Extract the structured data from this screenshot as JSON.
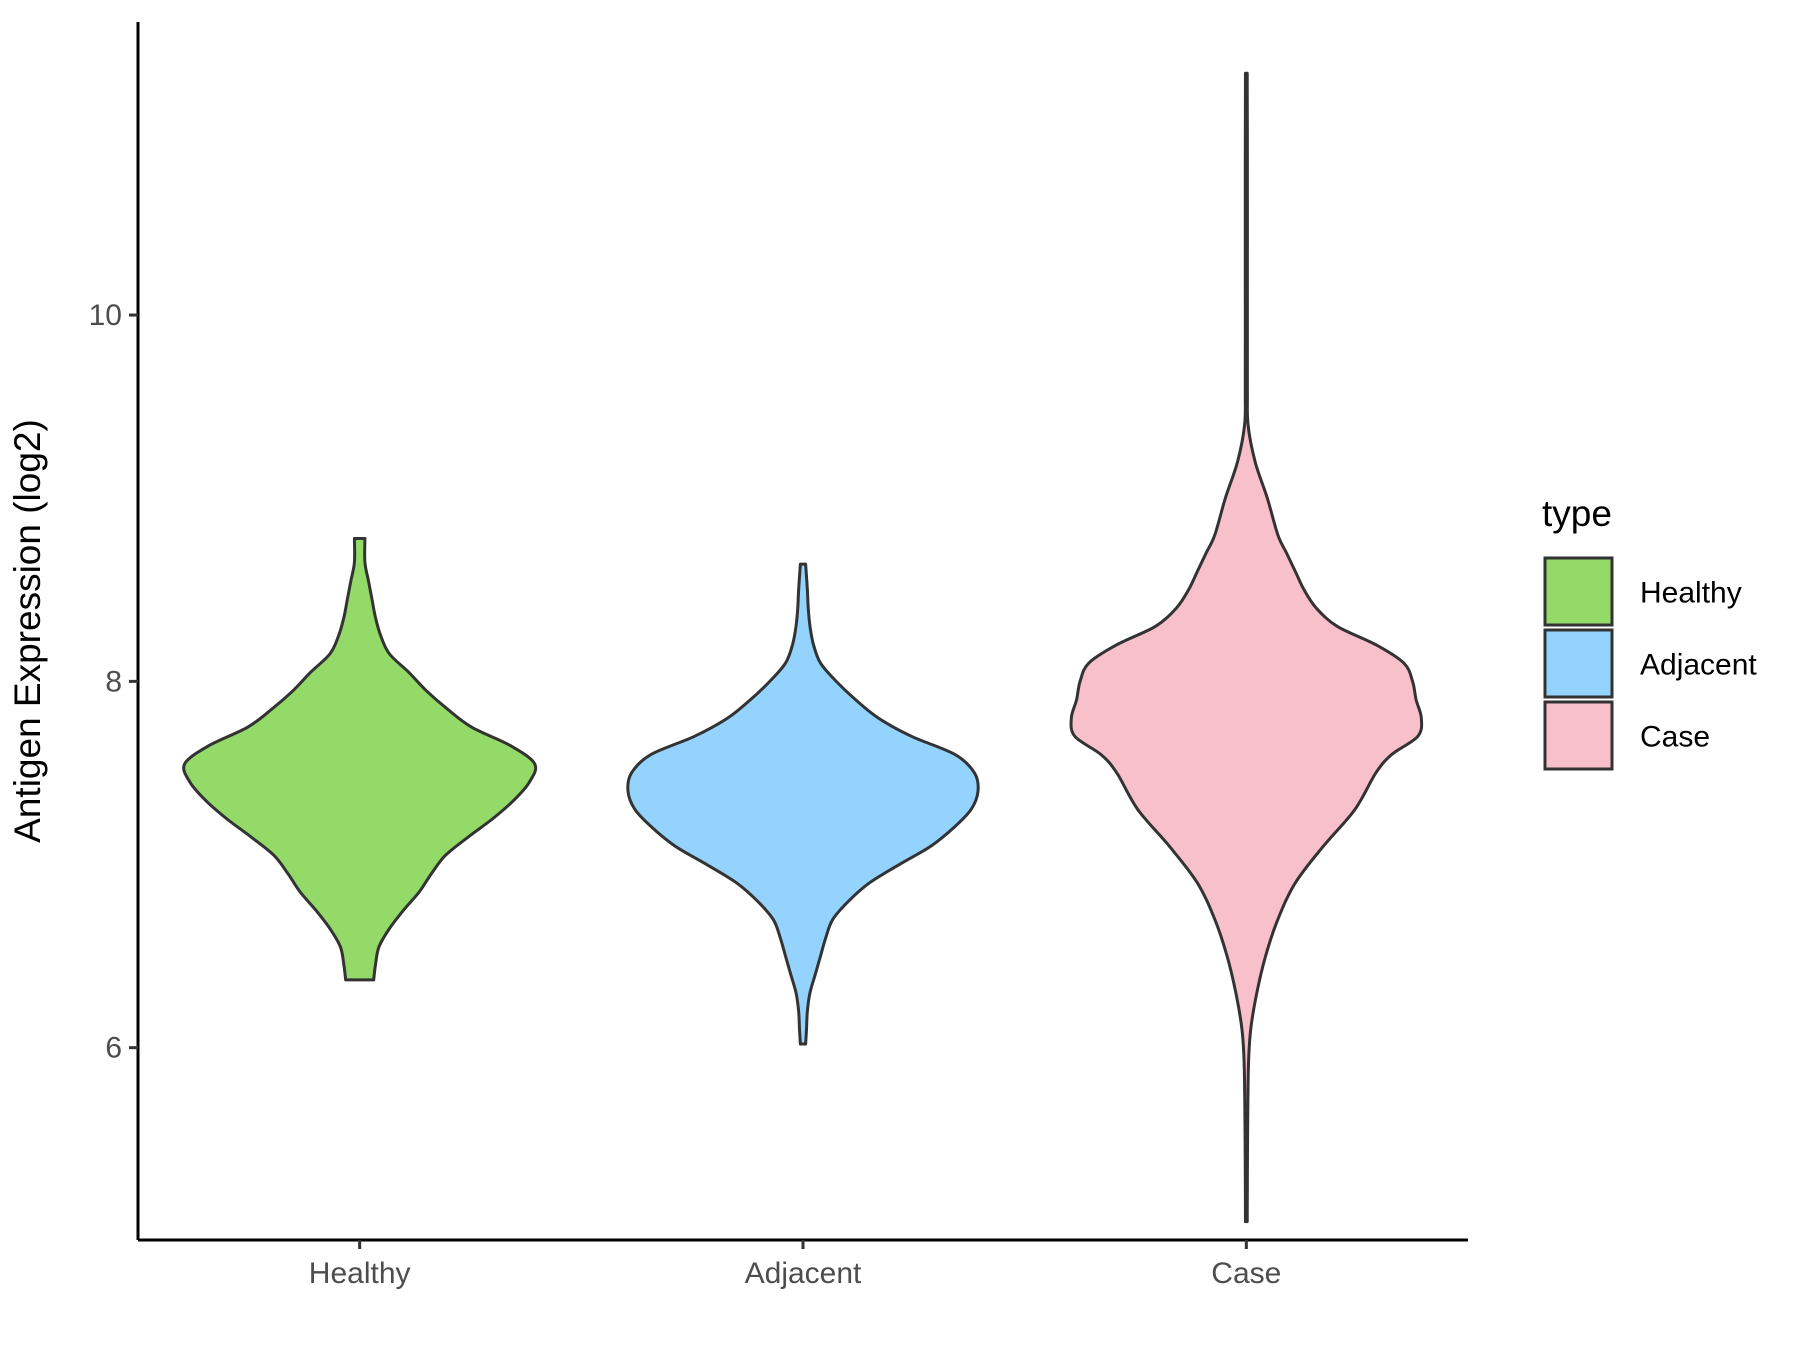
{
  "chart_data": {
    "type": "violin",
    "title": "",
    "xlabel": "",
    "ylabel": "Antigen Expression (log2)",
    "categories": [
      "Healthy",
      "Adjacent",
      "Case"
    ],
    "ylim": [
      4.95,
      11.6
    ],
    "yticks": [
      6,
      8,
      10
    ],
    "grid": false,
    "legend": {
      "title": "type",
      "position": "right",
      "entries": [
        {
          "label": "Healthy",
          "color": "#93da69"
        },
        {
          "label": "Adjacent",
          "color": "#93d3fd"
        },
        {
          "label": "Case",
          "color": "#f8c0cb"
        }
      ]
    },
    "outline_color": "#333333",
    "series": [
      {
        "name": "Healthy",
        "color": "#93da69",
        "min": 6.37,
        "max": 8.78,
        "profile": [
          [
            6.37,
            0.08
          ],
          [
            6.45,
            0.09
          ],
          [
            6.55,
            0.11
          ],
          [
            6.65,
            0.17
          ],
          [
            6.75,
            0.25
          ],
          [
            6.85,
            0.34
          ],
          [
            6.95,
            0.41
          ],
          [
            7.05,
            0.49
          ],
          [
            7.15,
            0.62
          ],
          [
            7.25,
            0.76
          ],
          [
            7.35,
            0.88
          ],
          [
            7.45,
            0.97
          ],
          [
            7.55,
            1.0
          ],
          [
            7.65,
            0.86
          ],
          [
            7.75,
            0.64
          ],
          [
            7.85,
            0.5
          ],
          [
            7.95,
            0.38
          ],
          [
            8.05,
            0.28
          ],
          [
            8.15,
            0.17
          ],
          [
            8.25,
            0.12
          ],
          [
            8.35,
            0.09
          ],
          [
            8.45,
            0.07
          ],
          [
            8.55,
            0.05
          ],
          [
            8.65,
            0.03
          ],
          [
            8.78,
            0.03
          ]
        ]
      },
      {
        "name": "Adjacent",
        "color": "#93d3fd",
        "min": 6.02,
        "max": 8.64,
        "profile": [
          [
            6.02,
            0.015
          ],
          [
            6.1,
            0.02
          ],
          [
            6.2,
            0.025
          ],
          [
            6.3,
            0.04
          ],
          [
            6.4,
            0.07
          ],
          [
            6.5,
            0.1
          ],
          [
            6.6,
            0.13
          ],
          [
            6.7,
            0.17
          ],
          [
            6.8,
            0.26
          ],
          [
            6.9,
            0.38
          ],
          [
            7.0,
            0.55
          ],
          [
            7.1,
            0.73
          ],
          [
            7.2,
            0.86
          ],
          [
            7.3,
            0.96
          ],
          [
            7.4,
            1.0
          ],
          [
            7.5,
            0.98
          ],
          [
            7.6,
            0.87
          ],
          [
            7.7,
            0.62
          ],
          [
            7.8,
            0.43
          ],
          [
            7.9,
            0.3
          ],
          [
            8.0,
            0.19
          ],
          [
            8.1,
            0.1
          ],
          [
            8.2,
            0.06
          ],
          [
            8.3,
            0.04
          ],
          [
            8.4,
            0.03
          ],
          [
            8.5,
            0.025
          ],
          [
            8.64,
            0.015
          ]
        ]
      },
      {
        "name": "Case",
        "color": "#f8c0cb",
        "min": 5.05,
        "max": 11.32,
        "profile": [
          [
            5.05,
            0.005
          ],
          [
            5.5,
            0.007
          ],
          [
            5.9,
            0.012
          ],
          [
            6.1,
            0.025
          ],
          [
            6.3,
            0.06
          ],
          [
            6.5,
            0.11
          ],
          [
            6.7,
            0.18
          ],
          [
            6.9,
            0.28
          ],
          [
            7.1,
            0.44
          ],
          [
            7.3,
            0.62
          ],
          [
            7.5,
            0.74
          ],
          [
            7.6,
            0.83
          ],
          [
            7.7,
            0.98
          ],
          [
            7.8,
            1.0
          ],
          [
            7.9,
            0.97
          ],
          [
            8.0,
            0.95
          ],
          [
            8.1,
            0.9
          ],
          [
            8.2,
            0.74
          ],
          [
            8.3,
            0.52
          ],
          [
            8.4,
            0.4
          ],
          [
            8.5,
            0.33
          ],
          [
            8.6,
            0.28
          ],
          [
            8.7,
            0.23
          ],
          [
            8.8,
            0.18
          ],
          [
            9.0,
            0.12
          ],
          [
            9.2,
            0.05
          ],
          [
            9.4,
            0.01
          ],
          [
            9.6,
            0.006
          ],
          [
            10.2,
            0.006
          ],
          [
            10.8,
            0.006
          ],
          [
            11.32,
            0.005
          ]
        ]
      }
    ]
  }
}
